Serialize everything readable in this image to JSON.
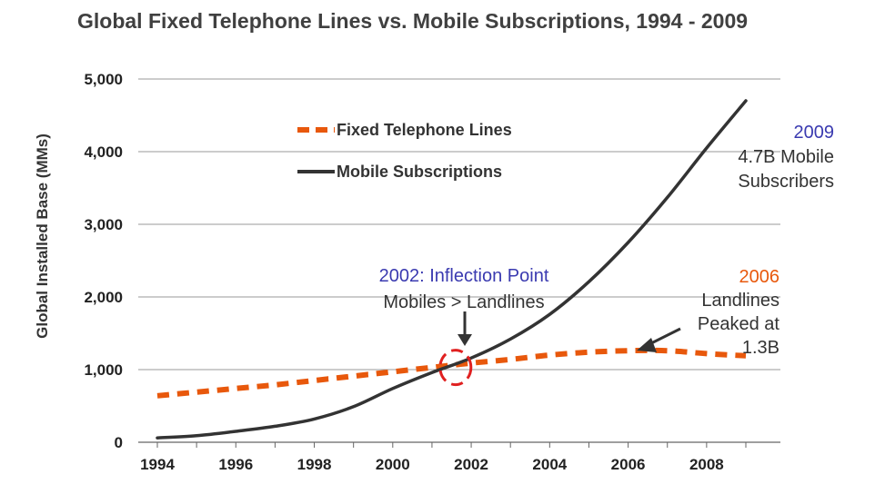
{
  "chart_data": {
    "type": "line",
    "title": "Global Fixed Telephone Lines vs. Mobile Subscriptions, 1994 - 2009",
    "ylabel": "Global Installed Base (MMs)",
    "xlabel": "",
    "xlim": [
      1994,
      2009
    ],
    "ylim": [
      0,
      5000
    ],
    "x_ticks": [
      "1994",
      "1996",
      "1998",
      "2000",
      "2002",
      "2004",
      "2006",
      "2008"
    ],
    "y_ticks": [
      "0",
      "1,000",
      "2,000",
      "3,000",
      "4,000",
      "5,000"
    ],
    "grid": "horizontal",
    "legend_position": "top-left",
    "series": [
      {
        "name": "Fixed Telephone Lines",
        "color": "#E8580C",
        "style": "dashed",
        "x": [
          1994,
          1995,
          1996,
          1997,
          1998,
          1999,
          2000,
          2001,
          2002,
          2003,
          2004,
          2005,
          2006,
          2007,
          2008,
          2009
        ],
        "values": [
          640,
          690,
          740,
          790,
          850,
          910,
          970,
          1030,
          1090,
          1140,
          1200,
          1240,
          1260,
          1260,
          1220,
          1190
        ]
      },
      {
        "name": "Mobile Subscriptions",
        "color": "#333333",
        "style": "solid",
        "x": [
          1994,
          1995,
          1996,
          1997,
          1998,
          1999,
          2000,
          2001,
          2002,
          2003,
          2004,
          2005,
          2006,
          2007,
          2008,
          2009
        ],
        "values": [
          60,
          90,
          150,
          220,
          320,
          490,
          740,
          960,
          1160,
          1420,
          1760,
          2210,
          2750,
          3370,
          4050,
          4700
        ]
      }
    ],
    "annotations": [
      {
        "id": "a2009",
        "lines": [
          "2009",
          "4.7B Mobile",
          "Subscribers"
        ],
        "colors": [
          "#3a3ab0",
          "#333333",
          "#333333"
        ]
      },
      {
        "id": "a2002",
        "lines": [
          "2002: Inflection Point",
          "Mobiles > Landlines"
        ],
        "colors": [
          "#3a3ab0",
          "#333333"
        ]
      },
      {
        "id": "a2006",
        "lines": [
          "2006",
          "Landlines",
          "Peaked at",
          "1.3B"
        ],
        "colors": [
          "#E8580C",
          "#333333",
          "#333333",
          "#333333"
        ]
      }
    ],
    "inflection_marker": {
      "x": 2001.6,
      "y": 1030,
      "color": "#E02020"
    }
  }
}
